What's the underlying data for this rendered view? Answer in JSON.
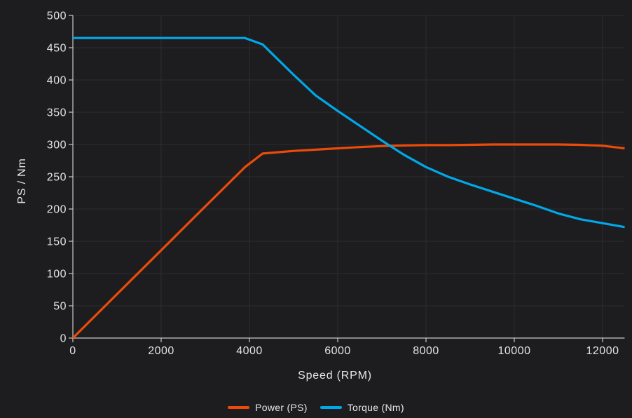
{
  "app": {
    "background_color": "#1d1d1f",
    "grid_color": "#2d2d30",
    "axis_line_color": "#c8c8c8",
    "text_color": "#e2e2e2"
  },
  "chart_data": {
    "type": "line",
    "title": "",
    "xlabel": "Speed (RPM)",
    "ylabel": "PS / Nm",
    "xlim": [
      0,
      12500
    ],
    "ylim": [
      0,
      500
    ],
    "x_ticks": [
      0,
      2000,
      4000,
      6000,
      8000,
      10000,
      12000
    ],
    "y_ticks": [
      0,
      50,
      100,
      150,
      200,
      250,
      300,
      350,
      400,
      450,
      500
    ],
    "grid": true,
    "legend_position": "bottom-center",
    "x": [
      0,
      1000,
      2000,
      3000,
      3900,
      4300,
      5000,
      5500,
      6000,
      6500,
      7000,
      7500,
      8000,
      8500,
      9000,
      9500,
      10000,
      10500,
      11000,
      11500,
      12000,
      12500
    ],
    "series": [
      {
        "name": "Power (PS)",
        "color": "#eb4b0a",
        "values": [
          0,
          68,
          136,
          204,
          265,
          286,
          290,
          292,
          294,
          296,
          297.5,
          298.5,
          299,
          299,
          299.5,
          300,
          300,
          300,
          300,
          299.5,
          298,
          294
        ]
      },
      {
        "name": "Torque (Nm)",
        "color": "#00a8e8",
        "values": [
          465,
          465,
          465,
          465,
          465,
          455,
          408,
          376,
          352,
          329,
          306,
          284,
          265,
          250,
          238,
          227,
          216,
          205,
          193,
          184,
          178,
          172
        ]
      }
    ]
  }
}
